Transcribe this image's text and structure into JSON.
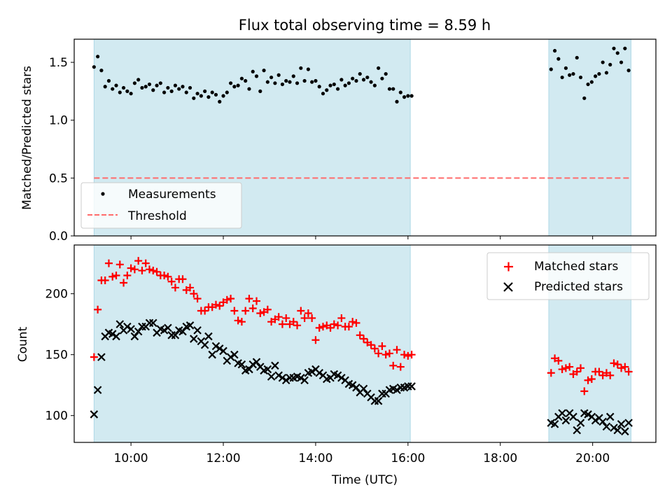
{
  "title": "Flux total observing time = 8.59 h",
  "colors": {
    "shade": "#add8e6",
    "measurement": "#000000",
    "threshold": "#ff6b6b",
    "matched": "#ff0000",
    "predicted": "#000000"
  },
  "chart_data": [
    {
      "type": "scatter",
      "ylabel": "Matched/Predicted stars",
      "ylim": [
        0,
        1.7
      ],
      "xlim": [
        8.77,
        21.37
      ],
      "yticks": [
        0.0,
        0.5,
        1.0,
        1.5
      ],
      "ytick_labels": [
        "0.0",
        "0.5",
        "1.0",
        "1.5"
      ],
      "legend": {
        "placement": "lower-left",
        "entries": [
          "Measurements",
          "Threshold"
        ]
      },
      "shaded_intervals": [
        [
          9.2,
          16.05
        ],
        [
          19.05,
          20.83
        ]
      ],
      "series": [
        {
          "name": "Measurements",
          "marker": "dot",
          "x": [
            9.2,
            9.28,
            9.36,
            9.44,
            9.52,
            9.6,
            9.68,
            9.76,
            9.84,
            9.92,
            10.0,
            10.08,
            10.16,
            10.24,
            10.32,
            10.4,
            10.48,
            10.56,
            10.64,
            10.72,
            10.8,
            10.88,
            10.96,
            11.04,
            11.12,
            11.2,
            11.28,
            11.36,
            11.44,
            11.52,
            11.6,
            11.68,
            11.76,
            11.84,
            11.92,
            12.0,
            12.08,
            12.16,
            12.24,
            12.32,
            12.4,
            12.48,
            12.56,
            12.64,
            12.72,
            12.8,
            12.88,
            12.96,
            13.04,
            13.12,
            13.2,
            13.28,
            13.36,
            13.44,
            13.52,
            13.6,
            13.68,
            13.76,
            13.84,
            13.92,
            14.0,
            14.08,
            14.16,
            14.24,
            14.32,
            14.4,
            14.48,
            14.56,
            14.64,
            14.72,
            14.8,
            14.88,
            14.96,
            15.04,
            15.12,
            15.2,
            15.28,
            15.36,
            15.44,
            15.52,
            15.6,
            15.68,
            15.76,
            15.84,
            15.92,
            16.0,
            16.08,
            19.1,
            19.18,
            19.26,
            19.34,
            19.42,
            19.5,
            19.58,
            19.66,
            19.74,
            19.82,
            19.9,
            19.98,
            20.06,
            20.14,
            20.22,
            20.3,
            20.38,
            20.46,
            20.54,
            20.62,
            20.7,
            20.78
          ],
          "y": [
            1.46,
            1.55,
            1.43,
            1.29,
            1.34,
            1.27,
            1.3,
            1.24,
            1.28,
            1.25,
            1.23,
            1.32,
            1.35,
            1.28,
            1.29,
            1.31,
            1.26,
            1.3,
            1.32,
            1.24,
            1.28,
            1.25,
            1.3,
            1.27,
            1.29,
            1.24,
            1.28,
            1.19,
            1.23,
            1.21,
            1.25,
            1.2,
            1.24,
            1.22,
            1.16,
            1.21,
            1.24,
            1.32,
            1.29,
            1.3,
            1.36,
            1.34,
            1.27,
            1.42,
            1.38,
            1.25,
            1.43,
            1.33,
            1.37,
            1.32,
            1.39,
            1.31,
            1.34,
            1.33,
            1.38,
            1.32,
            1.45,
            1.34,
            1.44,
            1.33,
            1.34,
            1.29,
            1.23,
            1.26,
            1.3,
            1.31,
            1.27,
            1.35,
            1.3,
            1.32,
            1.36,
            1.34,
            1.4,
            1.35,
            1.37,
            1.33,
            1.3,
            1.45,
            1.36,
            1.4,
            1.27,
            1.27,
            1.16,
            1.24,
            1.2,
            1.21,
            1.21,
            1.44,
            1.6,
            1.53,
            1.37,
            1.45,
            1.39,
            1.4,
            1.54,
            1.37,
            1.19,
            1.31,
            1.33,
            1.38,
            1.4,
            1.5,
            1.41,
            1.48,
            1.62,
            1.58,
            1.5,
            1.62,
            1.43
          ]
        },
        {
          "name": "Threshold",
          "marker": "dashed-line",
          "x": [
            9.2,
            20.83
          ],
          "y": [
            0.5,
            0.5
          ]
        }
      ]
    },
    {
      "type": "scatter",
      "xlabel": "Time (UTC)",
      "ylabel": "Count",
      "ylim": [
        78,
        240
      ],
      "xlim": [
        8.77,
        21.37
      ],
      "yticks": [
        100,
        150,
        200
      ],
      "ytick_labels": [
        "100",
        "150",
        "200"
      ],
      "xticks": [
        10,
        12,
        14,
        16,
        18,
        20
      ],
      "xtick_labels": [
        "10:00",
        "12:00",
        "14:00",
        "16:00",
        "18:00",
        "20:00"
      ],
      "legend": {
        "placement": "upper-right",
        "entries": [
          "Matched stars",
          "Predicted stars"
        ]
      },
      "shaded_intervals": [
        [
          9.2,
          16.05
        ],
        [
          19.05,
          20.83
        ]
      ],
      "series": [
        {
          "name": "Matched stars",
          "marker": "plus",
          "x": [
            9.2,
            9.28,
            9.36,
            9.44,
            9.52,
            9.6,
            9.68,
            9.76,
            9.84,
            9.92,
            10.0,
            10.08,
            10.16,
            10.24,
            10.32,
            10.4,
            10.48,
            10.56,
            10.64,
            10.72,
            10.8,
            10.88,
            10.96,
            11.04,
            11.12,
            11.2,
            11.28,
            11.36,
            11.44,
            11.52,
            11.6,
            11.68,
            11.76,
            11.84,
            11.92,
            12.0,
            12.08,
            12.16,
            12.24,
            12.32,
            12.4,
            12.48,
            12.56,
            12.64,
            12.72,
            12.8,
            12.88,
            12.96,
            13.04,
            13.12,
            13.2,
            13.28,
            13.36,
            13.44,
            13.52,
            13.6,
            13.68,
            13.76,
            13.84,
            13.92,
            14.0,
            14.08,
            14.16,
            14.24,
            14.32,
            14.4,
            14.48,
            14.56,
            14.64,
            14.72,
            14.8,
            14.88,
            14.96,
            15.04,
            15.12,
            15.2,
            15.28,
            15.36,
            15.44,
            15.52,
            15.6,
            15.68,
            15.76,
            15.84,
            15.92,
            16.0,
            16.08,
            19.1,
            19.18,
            19.26,
            19.34,
            19.42,
            19.5,
            19.58,
            19.66,
            19.74,
            19.82,
            19.9,
            19.98,
            20.06,
            20.14,
            20.22,
            20.3,
            20.38,
            20.46,
            20.54,
            20.62,
            20.7,
            20.78
          ],
          "y": [
            148,
            187,
            211,
            211,
            225,
            214,
            215,
            224,
            209,
            215,
            221,
            220,
            227,
            219,
            225,
            220,
            219,
            218,
            215,
            215,
            214,
            210,
            205,
            212,
            212,
            203,
            205,
            200,
            196,
            186,
            186,
            189,
            189,
            191,
            190,
            193,
            195,
            196,
            186,
            178,
            177,
            186,
            196,
            188,
            194,
            184,
            185,
            187,
            177,
            179,
            181,
            175,
            180,
            175,
            177,
            174,
            186,
            180,
            184,
            180,
            162,
            172,
            173,
            174,
            172,
            175,
            174,
            180,
            173,
            173,
            177,
            176,
            166,
            163,
            160,
            158,
            155,
            151,
            157,
            150,
            151,
            141,
            154,
            140,
            150,
            149,
            150,
            135,
            147,
            145,
            138,
            139,
            140,
            134,
            136,
            139,
            120,
            129,
            130,
            136,
            136,
            133,
            135,
            133,
            143,
            142,
            139,
            140,
            136
          ],
          "note_matched": ""
        },
        {
          "name": "Predicted stars",
          "marker": "x",
          "x": [
            9.2,
            9.28,
            9.36,
            9.44,
            9.52,
            9.6,
            9.68,
            9.76,
            9.84,
            9.92,
            10.0,
            10.08,
            10.16,
            10.24,
            10.32,
            10.4,
            10.48,
            10.56,
            10.64,
            10.72,
            10.8,
            10.88,
            10.96,
            11.04,
            11.12,
            11.2,
            11.28,
            11.36,
            11.44,
            11.52,
            11.6,
            11.68,
            11.76,
            11.84,
            11.92,
            12.0,
            12.08,
            12.16,
            12.24,
            12.32,
            12.4,
            12.48,
            12.56,
            12.64,
            12.72,
            12.8,
            12.88,
            12.96,
            13.04,
            13.12,
            13.2,
            13.28,
            13.36,
            13.44,
            13.52,
            13.6,
            13.68,
            13.76,
            13.84,
            13.92,
            14.0,
            14.08,
            14.16,
            14.24,
            14.32,
            14.4,
            14.48,
            14.56,
            14.64,
            14.72,
            14.8,
            14.88,
            14.96,
            15.04,
            15.12,
            15.2,
            15.28,
            15.36,
            15.44,
            15.52,
            15.6,
            15.68,
            15.76,
            15.84,
            15.92,
            16.0,
            16.08,
            19.1,
            19.18,
            19.26,
            19.34,
            19.42,
            19.5,
            19.58,
            19.66,
            19.74,
            19.82,
            19.9,
            19.98,
            20.06,
            20.14,
            20.22,
            20.3,
            20.38,
            20.46,
            20.54,
            20.62,
            20.7,
            20.78
          ],
          "y": [
            101,
            121,
            148,
            165,
            168,
            167,
            165,
            175,
            170,
            173,
            171,
            165,
            169,
            173,
            173,
            176,
            176,
            168,
            171,
            170,
            172,
            166,
            166,
            170,
            169,
            173,
            174,
            163,
            170,
            161,
            158,
            165,
            150,
            157,
            155,
            153,
            145,
            148,
            150,
            143,
            142,
            137,
            138,
            142,
            144,
            140,
            137,
            138,
            132,
            141,
            133,
            131,
            129,
            131,
            131,
            132,
            131,
            129,
            135,
            136,
            138,
            135,
            133,
            130,
            131,
            134,
            133,
            131,
            129,
            126,
            125,
            123,
            119,
            122,
            118,
            115,
            112,
            112,
            118,
            118,
            121,
            122,
            121,
            123,
            123,
            124,
            124,
            94,
            93,
            99,
            102,
            96,
            102,
            99,
            88,
            94,
            102,
            101,
            99,
            96,
            98,
            95,
            91,
            99,
            90,
            88,
            93,
            87,
            94
          ]
        }
      ]
    }
  ]
}
